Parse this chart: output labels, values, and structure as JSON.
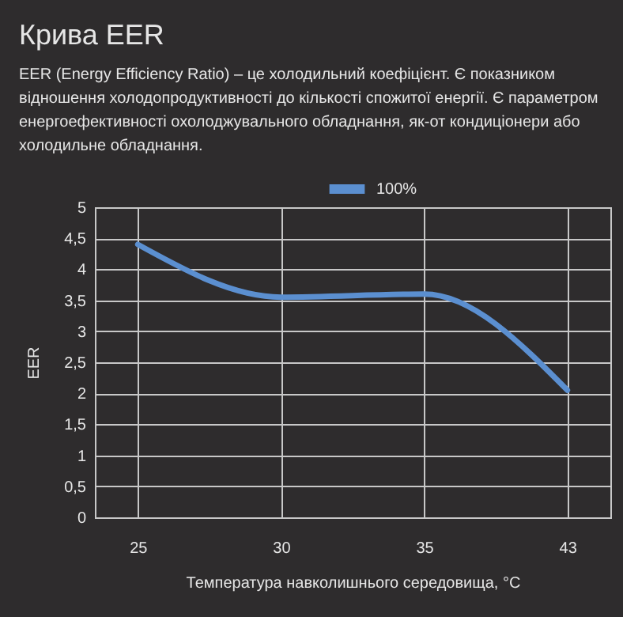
{
  "chart_data": {
    "type": "line",
    "title": "Крива EER",
    "subtitle": "EER (Energy Efficiency Ratio) – це холодильний коефіцієнт. Є показником відношення холодопродуктивності до кількості спожитої енергії. Є параметром енергоефективності охолоджувального обладнання, як-от кондиціонери або холодильне обладнання.",
    "xlabel": "Температура навколишнього середовища, °C",
    "ylabel": "EER",
    "categories": [
      "25",
      "30",
      "35",
      "43"
    ],
    "series": [
      {
        "name": "100%",
        "color": "#5b8fd0",
        "values": [
          4.4,
          3.55,
          3.6,
          2.05
        ]
      }
    ],
    "ylim": [
      0,
      5
    ],
    "yticks": [
      0,
      {
        "value": 0.5,
        "label": "0,5"
      },
      1,
      {
        "value": 1.5,
        "label": "1,5"
      },
      2,
      {
        "value": 2.5,
        "label": "2,5"
      },
      3,
      {
        "value": 3.5,
        "label": "3,5"
      },
      4,
      {
        "value": 4.5,
        "label": "4,5"
      },
      5
    ],
    "grid": true,
    "legend": "top",
    "marker": "none",
    "line_style": "solid"
  }
}
